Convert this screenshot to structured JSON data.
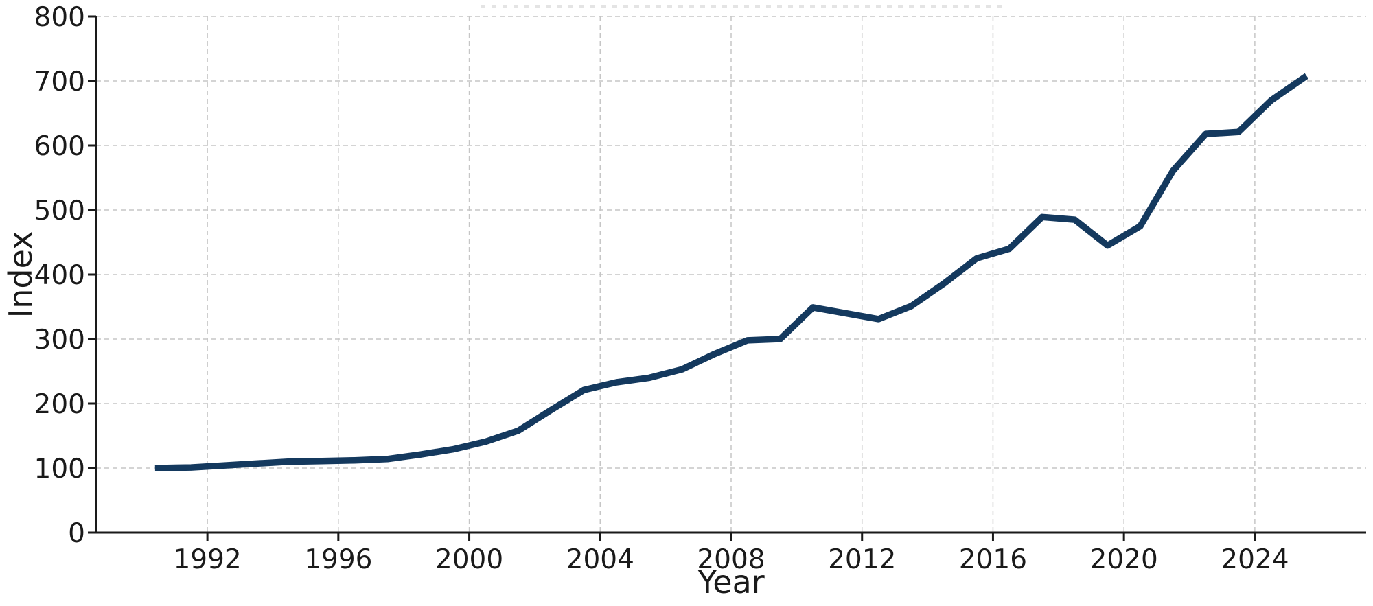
{
  "figure": {
    "background": "#ffffff"
  },
  "chart_data": {
    "type": "line",
    "title": "",
    "xlabel": "Year",
    "ylabel": "Index",
    "x": [
      1990,
      1991,
      1992,
      1993,
      1994,
      1995,
      1996,
      1997,
      1998,
      1999,
      2000,
      2001,
      2002,
      2003,
      2004,
      2005,
      2006,
      2007,
      2008,
      2009,
      2010,
      2011,
      2012,
      2013,
      2014,
      2015,
      2016,
      2017,
      2018,
      2019,
      2020,
      2021,
      2022,
      2023,
      2024,
      2025
    ],
    "values": [
      100,
      101,
      104,
      107,
      110,
      111,
      112,
      114,
      121,
      129,
      141,
      158,
      190,
      221,
      233,
      240,
      253,
      277,
      298,
      300,
      349,
      340,
      331,
      351,
      386,
      425,
      440,
      489,
      485,
      445,
      475,
      561,
      618,
      621,
      670,
      705
    ],
    "series_name": "Index",
    "x_plot_offset": 0.5,
    "xlim": [
      1988.6,
      2027.4
    ],
    "ylim": [
      0,
      800
    ],
    "x_ticks": [
      1992,
      1996,
      2000,
      2004,
      2008,
      2012,
      2016,
      2020,
      2024
    ],
    "y_ticks": [
      0,
      100,
      200,
      300,
      400,
      500,
      600,
      700,
      800
    ],
    "grid": true,
    "legend": false,
    "style": {
      "line_color": "#14395e",
      "line_width": 9.5,
      "grid_color": "#c6c6c6",
      "grid_dash": "7 5",
      "axis_color": "#1a1a1a",
      "text_color": "#1a1a1a",
      "background": "#ffffff"
    }
  }
}
